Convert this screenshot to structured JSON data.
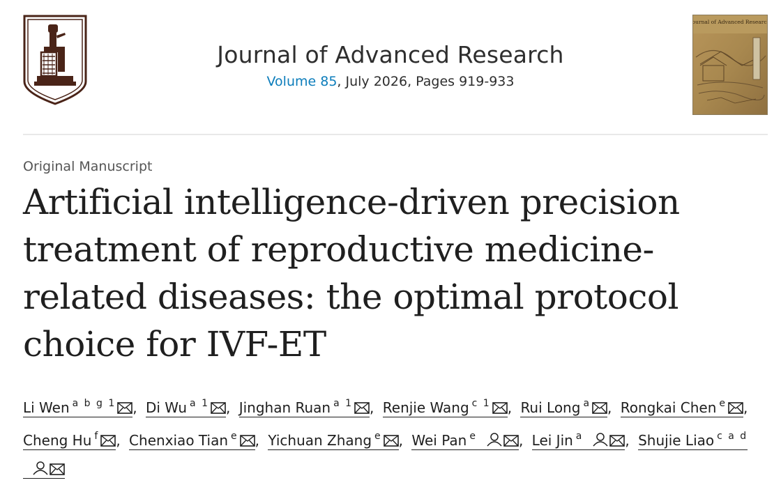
{
  "journal": {
    "title": "Journal of Advanced Research",
    "volume_link": "Volume 85",
    "issue_info": ", July 2026, Pages 919-933"
  },
  "cover": {
    "alt": "Journal of Advanced Research cover",
    "cover_title": "Journal of Advanced Research"
  },
  "article": {
    "type": "Original Manuscript",
    "title": "Artificial intelligence-driven precision treatment of reproductive medicine-related diseases: the optimal protocol choice for IVF-ET"
  },
  "authors": [
    {
      "name": "Li Wen",
      "aff": "a b g 1",
      "person": false,
      "email": true
    },
    {
      "name": "Di Wu",
      "aff": "a 1",
      "person": false,
      "email": true
    },
    {
      "name": "Jinghan Ruan",
      "aff": "a 1",
      "person": false,
      "email": true
    },
    {
      "name": "Renjie Wang",
      "aff": "c 1",
      "person": false,
      "email": true
    },
    {
      "name": "Rui Long",
      "aff": "a",
      "person": false,
      "email": true
    },
    {
      "name": "Rongkai Chen",
      "aff": "e",
      "person": false,
      "email": true
    },
    {
      "name": "Cheng Hu",
      "aff": "f",
      "person": false,
      "email": true
    },
    {
      "name": "Chenxiao Tian",
      "aff": "e",
      "person": false,
      "email": true
    },
    {
      "name": "Yichuan Zhang",
      "aff": "e",
      "person": false,
      "email": true
    },
    {
      "name": "Wei Pan",
      "aff": "e",
      "person": true,
      "email": true
    },
    {
      "name": "Lei Jin",
      "aff": "a",
      "person": true,
      "email": true
    },
    {
      "name": "Shujie Liao",
      "aff": "c a d",
      "person": true,
      "email": true
    }
  ],
  "colors": {
    "link": "#0c7dbb",
    "logo": "#4a2418",
    "text": "#1f1f1f"
  }
}
